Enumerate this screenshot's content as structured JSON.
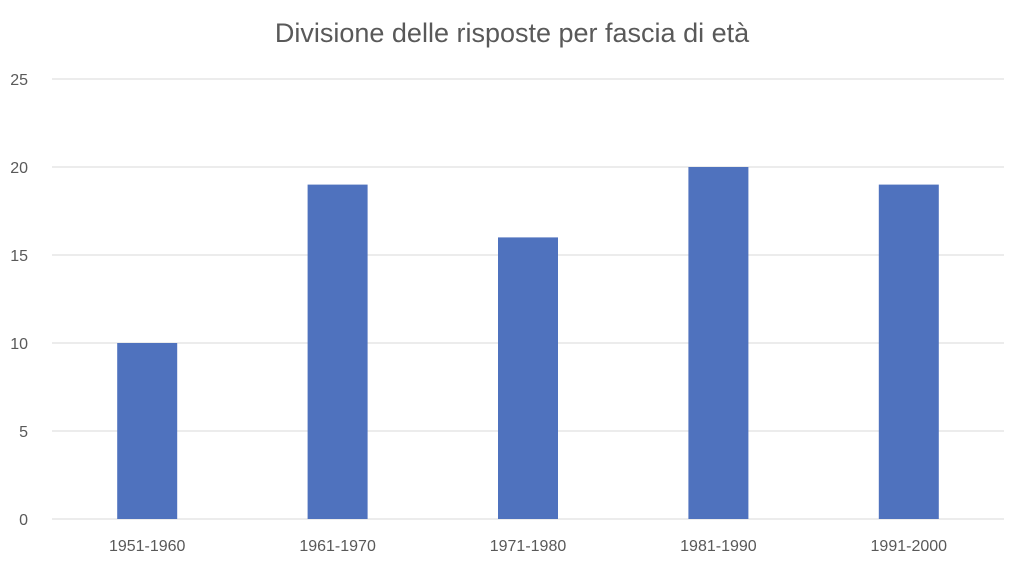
{
  "chart_data": {
    "type": "bar",
    "title": "Divisione delle risposte per fascia di età",
    "categories": [
      "1951-1960",
      "1961-1970",
      "1971-1980",
      "1981-1990",
      "1991-2000"
    ],
    "values": [
      10,
      19,
      16,
      20,
      19
    ],
    "yticks": [
      "0",
      "5",
      "10",
      "15",
      "20",
      "25"
    ],
    "ylim": [
      0,
      25
    ],
    "xlabel": "",
    "ylabel": "",
    "grid": true,
    "legend": "none",
    "bar_color": "#4f72be",
    "grid_color": "#d9d9d9"
  }
}
